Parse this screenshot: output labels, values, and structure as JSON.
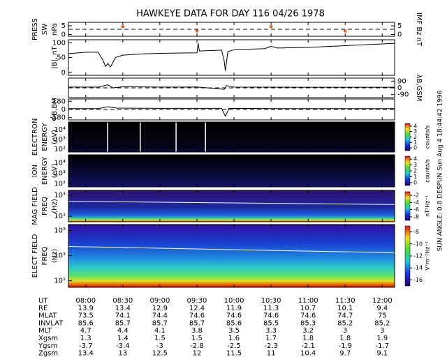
{
  "title": "HAWKEYE DATA FOR DAY 116 04/26 1978",
  "side_note": "SUN ANGLE:  0.8 DESPUN Sun Aug  4 18:44:42 1996",
  "xlim": [
    "07:46",
    "12:10"
  ],
  "ephemeris": {
    "rows": [
      {
        "label": "UT",
        "values": [
          "08:00",
          "08:30",
          "09:00",
          "09:30",
          "10:00",
          "10:30",
          "11:00",
          "11:30",
          "12:00"
        ]
      },
      {
        "label": "RE",
        "values": [
          13.9,
          13.4,
          12.9,
          12.4,
          11.9,
          11.3,
          10.7,
          10.1,
          9.4
        ]
      },
      {
        "label": "MLAT",
        "values": [
          73.5,
          74.1,
          74.4,
          74.6,
          74.6,
          74.6,
          74.6,
          74.7,
          75.0
        ]
      },
      {
        "label": "INVLAT",
        "values": [
          85.6,
          85.7,
          85.7,
          85.7,
          85.6,
          85.5,
          85.3,
          85.2,
          85.2
        ]
      },
      {
        "label": "MLT",
        "values": [
          4.7,
          4.4,
          4.1,
          3.8,
          3.5,
          3.3,
          3.2,
          3.0,
          3.0
        ]
      },
      {
        "label": "Xgsm",
        "values": [
          1.3,
          1.4,
          1.5,
          1.5,
          1.6,
          1.7,
          1.8,
          1.8,
          1.9
        ]
      },
      {
        "label": "Ygsm",
        "values": [
          -3.7,
          -3.4,
          -3.0,
          -2.8,
          -2.5,
          -2.3,
          -2.1,
          -1.9,
          -1.7
        ]
      },
      {
        "label": "Zgsm",
        "values": [
          13.4,
          13.0,
          12.5,
          12.0,
          11.5,
          11.0,
          10.4,
          9.7,
          9.1
        ]
      }
    ]
  },
  "chart_data": [
    {
      "type": "line",
      "ylabel": [
        "PRESS",
        "SW",
        "nPa"
      ],
      "y2label": [
        "IMF Bz nT"
      ],
      "ylim": [
        -1,
        7
      ],
      "yticks": [
        0,
        5
      ],
      "y2lim": [
        -1,
        7
      ],
      "y2ticks": [
        0,
        5
      ],
      "series": [
        {
          "color": "#e06020",
          "axis": "y2",
          "marker": "square",
          "x": [
            "08:30",
            "09:30",
            "10:30",
            "11:30"
          ],
          "values": [
            4.5,
            2,
            4.5,
            2
          ]
        }
      ]
    },
    {
      "type": "line",
      "ylabel": [
        "|B|, nT"
      ],
      "ylim": [
        -10,
        110
      ],
      "yticks": [
        0,
        50,
        100
      ],
      "series": [
        {
          "color": "#000000",
          "x": [
            "07:46",
            "08:00",
            "08:10",
            "08:14",
            "08:16",
            "08:18",
            "08:20",
            "08:24",
            "08:30",
            "08:45",
            "09:00",
            "09:30",
            "09:31",
            "09:32",
            "09:50",
            "09:52",
            "09:53",
            "09:55",
            "10:00",
            "10:25",
            "10:30",
            "10:35",
            "11:00",
            "11:30",
            "12:00",
            "12:10"
          ],
          "values": [
            63,
            68,
            68,
            40,
            20,
            30,
            18,
            50,
            58,
            62,
            64,
            66,
            98,
            72,
            75,
            40,
            5,
            70,
            76,
            80,
            88,
            82,
            84,
            90,
            96,
            98
          ]
        }
      ]
    },
    {
      "type": "line",
      "y2label": [
        "λB,GSM"
      ],
      "y2lim": [
        -130,
        130
      ],
      "y2ticks": [
        -90,
        0,
        90
      ],
      "series": [
        {
          "color": "#000000",
          "axis": "y2",
          "x": [
            "07:46",
            "08:10",
            "08:18",
            "08:22",
            "08:30",
            "09:00",
            "09:30",
            "09:52",
            "09:54",
            "10:00",
            "11:00",
            "12:10"
          ],
          "values": [
            10,
            10,
            40,
            0,
            15,
            10,
            12,
            -20,
            30,
            10,
            8,
            8
          ]
        }
      ]
    },
    {
      "type": "line",
      "ylabel": [
        "ΦB,BM"
      ],
      "ylim": [
        -230,
        230
      ],
      "yticks": [
        -180,
        0,
        180
      ],
      "series": [
        {
          "color": "#000000",
          "x": [
            "07:46",
            "08:10",
            "08:18",
            "08:25",
            "09:00",
            "09:50",
            "09:53",
            "09:56",
            "10:30",
            "12:10"
          ],
          "values": [
            20,
            20,
            60,
            30,
            25,
            25,
            -150,
            25,
            20,
            20
          ]
        }
      ]
    },
    {
      "type": "spectrogram",
      "ylabel": [
        "ELECTRON",
        "ENERGY",
        "(eV)"
      ],
      "log": true,
      "ylim": [
        50,
        60000
      ],
      "yticks": [
        {
          "value": 100,
          "label": "10²"
        },
        {
          "value": 1000,
          "label": "10³"
        },
        {
          "value": 10000,
          "label": "10⁴"
        }
      ],
      "zlim": [
        -0.5,
        4.5
      ],
      "zticks": [
        0,
        1,
        2,
        3,
        4
      ],
      "zlabel": "counts/s",
      "palette": "electron"
    },
    {
      "type": "spectrogram",
      "ylabel": [
        "ION",
        "ENERGY",
        "(eV)"
      ],
      "log": true,
      "ylim": [
        50,
        60000
      ],
      "yticks": [
        {
          "value": 100,
          "label": "10²"
        },
        {
          "value": 1000,
          "label": "10³"
        },
        {
          "value": 10000,
          "label": "10⁴"
        }
      ],
      "zlim": [
        -0.5,
        4.5
      ],
      "zticks": [
        0,
        1,
        2,
        3,
        4
      ],
      "zlabel": "counts/s",
      "palette": "ion"
    },
    {
      "type": "spectrogram",
      "ylabel": [
        "MAG FIELD",
        "FREQ",
        "(Hz)"
      ],
      "log": true,
      "ylim": [
        3,
        3000
      ],
      "yticks": [
        {
          "value": 10,
          "label": "10¹"
        },
        {
          "value": 1000,
          "label": "10³"
        }
      ],
      "zlim": [
        -9,
        -1
      ],
      "zticks": [
        -8,
        -6,
        -4,
        -2
      ],
      "zlabel": "nT²Hz⁻¹",
      "palette": "mag"
    },
    {
      "type": "spectrogram",
      "ylabel": [
        "ELECT FIELD",
        "FREQ",
        "(Hz)"
      ],
      "log": true,
      "ylim": [
        3,
        300000
      ],
      "yticks": [
        {
          "value": 10,
          "label": "10¹"
        },
        {
          "value": 1000,
          "label": "10³"
        },
        {
          "value": 100000,
          "label": "10⁵"
        }
      ],
      "zlim": [
        -17,
        -7
      ],
      "zticks": [
        -16,
        -14,
        -12,
        -10,
        -8
      ],
      "zlabel": "V²m⁻²Hz⁻¹",
      "palette": "elec"
    }
  ]
}
